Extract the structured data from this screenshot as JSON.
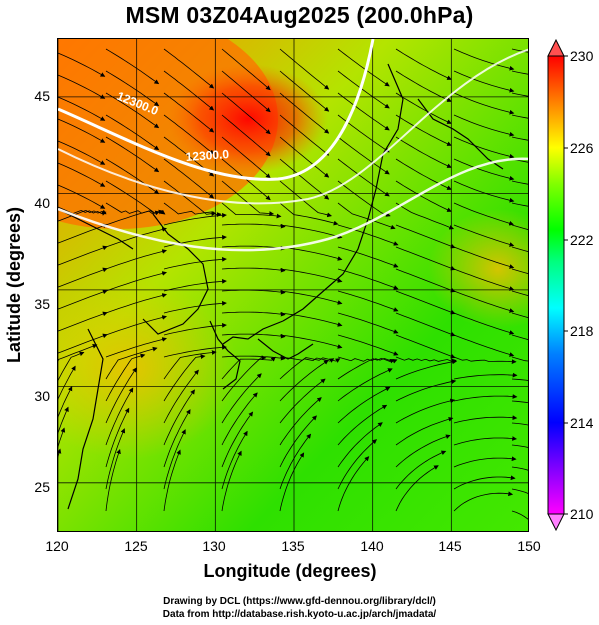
{
  "title": "MSM 03Z04Aug2025 (200.0hPa)",
  "map": {
    "lon_range": [
      120,
      150
    ],
    "lat_range": [
      22.4,
      48
    ],
    "x_ticks": [
      120,
      125,
      130,
      135,
      140,
      145,
      150
    ],
    "y_ticks": [
      25,
      30,
      35,
      40,
      45
    ],
    "xlabel": "Longitude (degrees)",
    "ylabel": "Latitude  (degrees)",
    "grid": true,
    "field": "temperature-shading",
    "overlay": "wind streamlines",
    "contours": [
      {
        "label": "12300.0"
      },
      {
        "label": "12300.0"
      }
    ]
  },
  "colorbar": {
    "min": 210,
    "max": 230,
    "tick_labels": [
      "230",
      "226",
      "222",
      "218",
      "214",
      "210"
    ],
    "colors": [
      "#ff00ff",
      "#8000ff",
      "#0000ff",
      "#0080ff",
      "#00ffff",
      "#00ff80",
      "#00ff00",
      "#80ff00",
      "#ffff00",
      "#ff8000",
      "#ff0000"
    ]
  },
  "credits": {
    "line1": "Drawing by DCL (https://www.gfd-dennou.org/library/dcl/)",
    "line2": "Data from http://database.rish.kyoto-u.ac.jp/arch/jmadata/"
  }
}
